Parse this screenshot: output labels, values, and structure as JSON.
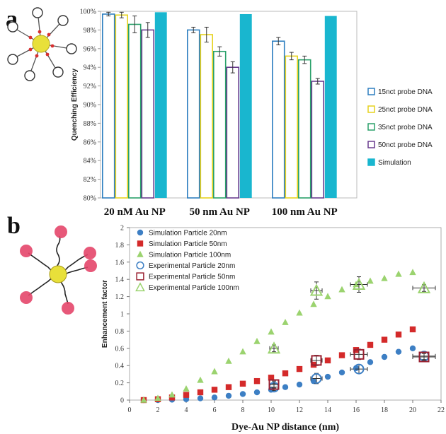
{
  "panels": {
    "a": "a",
    "b": "b"
  },
  "chart_data": [
    {
      "type": "bar",
      "ylabel": "Quenching Efficiency",
      "xlabel": "",
      "ylim": [
        80,
        100
      ],
      "y_ticks": [
        "80%",
        "82%",
        "84%",
        "86%",
        "88%",
        "90%",
        "92%",
        "94%",
        "96%",
        "98%",
        "100%"
      ],
      "categories": [
        "20 nM Au NP",
        "50 nm Au NP",
        "100 nm Au NP"
      ],
      "series": [
        {
          "name": "15nct probe DNA",
          "color": "#2e7fc0",
          "filled": false,
          "values": [
            99.7,
            98.0,
            96.8
          ],
          "errors": [
            0.2,
            0.3,
            0.4
          ]
        },
        {
          "name": "25nct probe DNA",
          "color": "#e6d21f",
          "filled": false,
          "values": [
            99.6,
            97.5,
            95.2
          ],
          "errors": [
            0.3,
            0.8,
            0.4
          ]
        },
        {
          "name": "35nct probe DNA",
          "color": "#2aa06a",
          "filled": false,
          "values": [
            98.6,
            95.7,
            94.8
          ],
          "errors": [
            0.9,
            0.5,
            0.4
          ]
        },
        {
          "name": "50nct probe DNA",
          "color": "#6a3d8f",
          "filled": false,
          "values": [
            98.0,
            94.0,
            92.5
          ],
          "errors": [
            0.8,
            0.6,
            0.3
          ]
        },
        {
          "name": "Simulation",
          "color": "#19b6cf",
          "filled": true,
          "values": [
            99.9,
            99.7,
            99.5
          ],
          "errors": [
            0,
            0,
            0
          ]
        }
      ],
      "legend_position": "right",
      "grid": false
    },
    {
      "type": "scatter",
      "xlabel": "Dye-Au NP distance (nm)",
      "ylabel": "Enhancement factor",
      "xlim": [
        0,
        22
      ],
      "ylim": [
        0,
        2
      ],
      "x_ticks": [
        "0",
        "2",
        "4",
        "6",
        "8",
        "10",
        "12",
        "14",
        "16",
        "18",
        "20",
        "22"
      ],
      "y_ticks": [
        "0",
        "0.2",
        "0.4",
        "0.6",
        "0.8",
        "1",
        "1.2",
        "1.4",
        "1.6",
        "1.8",
        "2"
      ],
      "legend_position": "top-left",
      "grid": false,
      "series": [
        {
          "name": "Simulation Particle 20nm",
          "marker": "circle-filled",
          "color": "#3d7fc4",
          "x": [
            1,
            2,
            3,
            4,
            5,
            6,
            7,
            8,
            9,
            10,
            11,
            12,
            13,
            14,
            15,
            16,
            17,
            18,
            19,
            20
          ],
          "y": [
            0.0,
            0.0,
            0.005,
            0.01,
            0.02,
            0.03,
            0.05,
            0.07,
            0.09,
            0.12,
            0.15,
            0.18,
            0.22,
            0.27,
            0.32,
            0.37,
            0.44,
            0.5,
            0.56,
            0.6
          ]
        },
        {
          "name": "Simulation Particle 50nm",
          "marker": "square-filled",
          "color": "#d42a2a",
          "x": [
            1,
            2,
            3,
            4,
            5,
            6,
            7,
            8,
            9,
            10,
            11,
            12,
            13,
            14,
            15,
            16,
            17,
            18,
            19,
            20
          ],
          "y": [
            0.0,
            0.01,
            0.03,
            0.06,
            0.09,
            0.12,
            0.15,
            0.19,
            0.22,
            0.26,
            0.31,
            0.36,
            0.41,
            0.46,
            0.52,
            0.58,
            0.64,
            0.7,
            0.76,
            0.82
          ]
        },
        {
          "name": "Simulation Particle 100nm",
          "marker": "triangle-filled",
          "color": "#9bd36f",
          "x": [
            1,
            2,
            3,
            4,
            5,
            6,
            7,
            8,
            9,
            10,
            11,
            12,
            13,
            14,
            15,
            16,
            17,
            18,
            19,
            20
          ],
          "y": [
            0.0,
            0.02,
            0.06,
            0.13,
            0.23,
            0.33,
            0.45,
            0.56,
            0.68,
            0.79,
            0.9,
            1.01,
            1.11,
            1.2,
            1.28,
            1.34,
            1.38,
            1.41,
            1.46,
            1.48
          ]
        },
        {
          "name": "Experimental Particle 20nm",
          "marker": "circle-open",
          "color": "#3d7fc4",
          "x": [
            10.2,
            13.2,
            16.2,
            20.8
          ],
          "y": [
            0.15,
            0.25,
            0.36,
            0.51
          ],
          "xerr": [
            0.3,
            0.4,
            0.6,
            0.8
          ],
          "yerr": [
            0.04,
            0.06,
            0.05,
            0.04
          ]
        },
        {
          "name": "Experimental Particle 50nm",
          "marker": "square-open",
          "color": "#9a2030",
          "x": [
            10.2,
            13.2,
            16.2,
            20.8
          ],
          "y": [
            0.18,
            0.46,
            0.53,
            0.5
          ],
          "xerr": [
            0.3,
            0.4,
            0.6,
            0.8
          ],
          "yerr": [
            0.04,
            0.06,
            0.06,
            0.04
          ]
        },
        {
          "name": "Experimental Particle 100nm",
          "marker": "triangle-open",
          "color": "#9bd36f",
          "x": [
            10.2,
            13.2,
            16.2,
            20.8
          ],
          "y": [
            0.6,
            1.27,
            1.34,
            1.3
          ],
          "xerr": [
            0.3,
            0.4,
            0.6,
            0.8
          ],
          "yerr": [
            0.04,
            0.1,
            0.09,
            0.04
          ]
        }
      ]
    }
  ]
}
